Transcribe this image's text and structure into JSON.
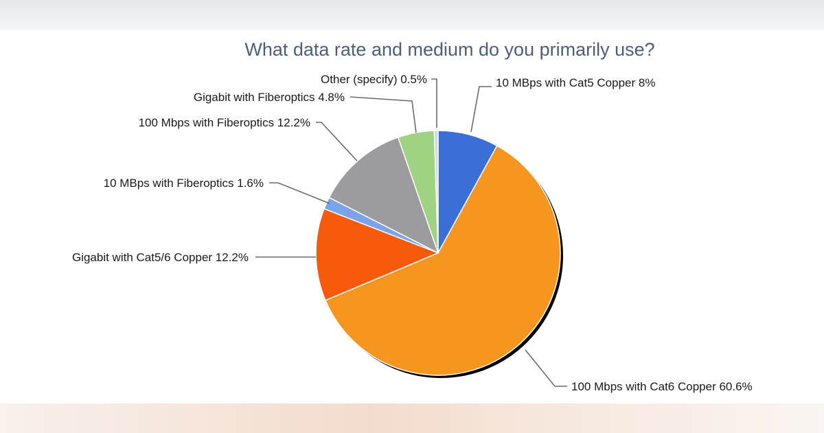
{
  "chart_data": {
    "type": "pie",
    "title": "What data rate and medium do you primarily use?",
    "start_angle_deg": 0,
    "direction": "clockwise",
    "slices": [
      {
        "label": "10 MBps with Cat5 Copper 8%",
        "value": 8.0,
        "color": "#3b6fd8"
      },
      {
        "label": "100 Mbps with Cat6 Copper 60.6%",
        "value": 60.6,
        "color": "#f79521"
      },
      {
        "label": "Gigabit with Cat5/6 Copper 12.2%",
        "value": 12.2,
        "color": "#f85a0b"
      },
      {
        "label": "10 MBps with Fiberoptics 1.6%",
        "value": 1.6,
        "color": "#7aa3ea"
      },
      {
        "label": "100 Mbps with Fiberoptics 12.2%",
        "value": 12.2,
        "color": "#9c9ca0"
      },
      {
        "label": "Gigabit with Fiberoptics 4.8%",
        "value": 4.8,
        "color": "#9fd283"
      },
      {
        "label": "Other (specify) 0.5%",
        "value": 0.5,
        "color": "#c9dbef"
      }
    ]
  }
}
